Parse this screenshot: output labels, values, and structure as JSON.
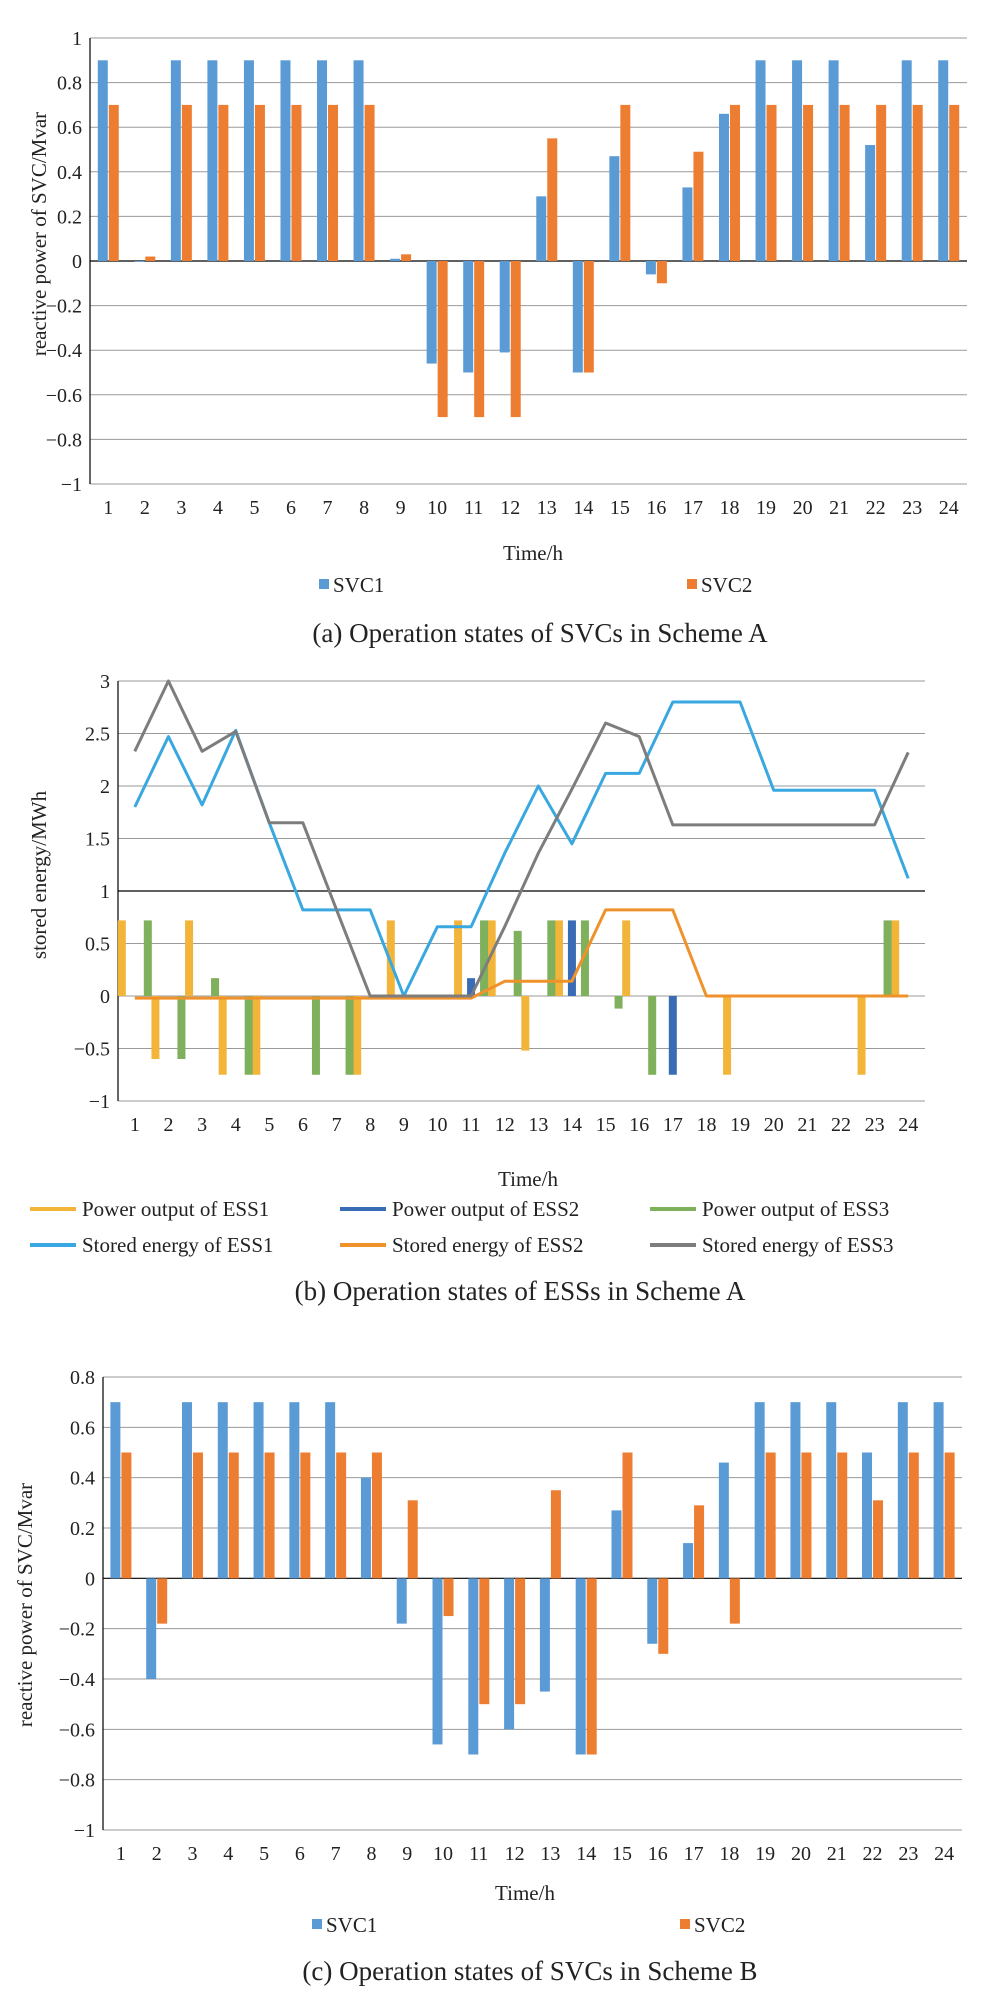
{
  "chart_data": [
    {
      "id": "a",
      "type": "bar",
      "caption": "(a) Operation states of SVCs in Scheme A",
      "xlabel": "Time/h",
      "ylabel": "reactive power of SVC/Mvar",
      "ylim": [
        -1,
        1
      ],
      "yticks": [
        1,
        0.8,
        0.6,
        0.4,
        0.2,
        0,
        -0.2,
        -0.4,
        -0.6,
        -0.8,
        -1
      ],
      "ytick_labels": [
        "1",
        "0.8",
        "0.6",
        "0.4",
        "0.2",
        "0",
        "−0.2",
        "−0.4",
        "−0.6",
        "−0.8",
        "−1"
      ],
      "categories": [
        "1",
        "2",
        "3",
        "4",
        "5",
        "6",
        "7",
        "8",
        "9",
        "10",
        "11",
        "12",
        "13",
        "14",
        "15",
        "16",
        "17",
        "18",
        "19",
        "20",
        "21",
        "22",
        "23",
        "24"
      ],
      "series": [
        {
          "name": "SVC1",
          "color": "#5b9bd5",
          "values": [
            0.9,
            0.0,
            0.9,
            0.9,
            0.9,
            0.9,
            0.9,
            0.9,
            0.01,
            -0.46,
            -0.5,
            -0.41,
            0.29,
            -0.5,
            0.47,
            -0.06,
            0.33,
            0.66,
            0.9,
            0.9,
            0.9,
            0.52,
            0.9,
            0.9
          ]
        },
        {
          "name": "SVC2",
          "color": "#ed7d31",
          "values": [
            0.7,
            0.02,
            0.7,
            0.7,
            0.7,
            0.7,
            0.7,
            0.7,
            0.03,
            -0.7,
            -0.7,
            -0.7,
            0.55,
            -0.5,
            0.7,
            -0.1,
            0.49,
            0.7,
            0.7,
            0.7,
            0.7,
            0.7,
            0.7,
            0.7
          ]
        }
      ],
      "legend": [
        "SVC1",
        "SVC2"
      ]
    },
    {
      "id": "b",
      "type": "bar+line",
      "caption": "(b) Operation states of ESSs in Scheme A",
      "xlabel": "Time/h",
      "ylabel": "stored energy/MWh",
      "ylim": [
        -1,
        3
      ],
      "yticks": [
        3,
        2.5,
        2,
        1.5,
        1,
        0.5,
        0,
        -0.5,
        -1
      ],
      "ytick_labels": [
        "3",
        "2.5",
        "2",
        "1.5",
        "1",
        "0.5",
        "0",
        "−0.5",
        "−1"
      ],
      "categories": [
        "1",
        "2",
        "3",
        "4",
        "5",
        "6",
        "7",
        "8",
        "9",
        "10",
        "11",
        "12",
        "13",
        "14",
        "15",
        "16",
        "17",
        "18",
        "19",
        "20",
        "21",
        "22",
        "23",
        "24"
      ],
      "bar_series": [
        {
          "name": "Power output of ESS1",
          "color": "#f2b53a",
          "values": [
            0.72,
            -0.6,
            0.72,
            -0.75,
            -0.75,
            0,
            0,
            -0.75,
            0.72,
            0,
            0.72,
            0.72,
            -0.52,
            0.72,
            0,
            0.72,
            0,
            0,
            -0.75,
            0,
            0,
            0,
            -0.75,
            0.72
          ]
        },
        {
          "name": "Power output of ESS2",
          "color": "#3a6cb5",
          "values": [
            0,
            0,
            0,
            0,
            0,
            0,
            0,
            0,
            0,
            0,
            0.17,
            0,
            0,
            0.72,
            0,
            0,
            -0.75,
            0,
            0,
            0,
            0,
            0,
            0,
            0
          ]
        },
        {
          "name": "Power output of ESS3",
          "color": "#7fb05c",
          "values": [
            0.72,
            -0.6,
            0.17,
            -0.75,
            0,
            -0.75,
            -0.75,
            0,
            0,
            0,
            0.72,
            0.62,
            0.72,
            0.72,
            -0.12,
            -0.75,
            0,
            0,
            0,
            0,
            0,
            0,
            0.72,
            0
          ]
        }
      ],
      "line_series": [
        {
          "name": "Stored energy of ESS1",
          "color": "#3aa8e0",
          "values": [
            1.8,
            2.47,
            1.82,
            2.53,
            1.65,
            0.82,
            0.82,
            0.82,
            0.0,
            0.66,
            0.66,
            1.36,
            2.0,
            1.45,
            2.12,
            2.12,
            2.8,
            2.8,
            2.8,
            1.96,
            1.96,
            1.96,
            1.96,
            1.12
          ]
        },
        {
          "name": "Stored energy of ESS2",
          "color": "#f0922c",
          "values": [
            -0.02,
            -0.02,
            -0.02,
            -0.02,
            -0.02,
            -0.02,
            -0.02,
            -0.02,
            -0.02,
            -0.02,
            -0.02,
            0.14,
            0.14,
            0.14,
            0.82,
            0.82,
            0.82,
            0.0,
            0.0,
            0.0,
            0.0,
            0.0,
            0.0,
            0.0
          ]
        },
        {
          "name": "Stored energy of ESS3",
          "color": "#7d7d7d",
          "values": [
            2.33,
            3.0,
            2.33,
            2.52,
            1.65,
            1.65,
            0.82,
            0.0,
            0.0,
            0.0,
            0.0,
            0.66,
            1.36,
            1.97,
            2.6,
            2.47,
            1.63,
            1.63,
            1.63,
            1.63,
            1.63,
            1.63,
            1.63,
            2.32
          ]
        }
      ],
      "legend": [
        "Power output of ESS1",
        "Power output of ESS2",
        "Power output of ESS3",
        "Stored energy of ESS1",
        "Stored energy of ESS2",
        "Stored energy of ESS3"
      ]
    },
    {
      "id": "c",
      "type": "bar",
      "caption": "(c) Operation states of SVCs in Scheme B",
      "xlabel": "Time/h",
      "ylabel": "reactive power of SVC/Mvar",
      "ylim": [
        -1,
        0.8
      ],
      "yticks": [
        0.8,
        0.6,
        0.4,
        0.2,
        0,
        -0.2,
        -0.4,
        -0.6,
        -0.8,
        -1
      ],
      "ytick_labels": [
        "0.8",
        "0.6",
        "0.4",
        "0.2",
        "0",
        "−0.2",
        "−0.4",
        "−0.6",
        "−0.8",
        "−1"
      ],
      "categories": [
        "1",
        "2",
        "3",
        "4",
        "5",
        "6",
        "7",
        "8",
        "9",
        "10",
        "11",
        "12",
        "13",
        "14",
        "15",
        "16",
        "17",
        "18",
        "19",
        "20",
        "21",
        "22",
        "23",
        "24"
      ],
      "series": [
        {
          "name": "SVC1",
          "color": "#5b9bd5",
          "values": [
            0.7,
            -0.4,
            0.7,
            0.7,
            0.7,
            0.7,
            0.7,
            0.4,
            -0.18,
            -0.66,
            -0.7,
            -0.6,
            -0.45,
            -0.7,
            0.27,
            -0.26,
            0.14,
            0.46,
            0.7,
            0.7,
            0.7,
            0.5,
            0.7,
            0.7
          ]
        },
        {
          "name": "SVC2",
          "color": "#ed7d31",
          "values": [
            0.5,
            -0.18,
            0.5,
            0.5,
            0.5,
            0.5,
            0.5,
            0.5,
            0.31,
            -0.15,
            -0.5,
            -0.5,
            0.35,
            -0.7,
            0.5,
            -0.3,
            0.29,
            -0.18,
            0.5,
            0.5,
            0.5,
            0.31,
            0.5,
            0.5
          ]
        }
      ],
      "legend": [
        "SVC1",
        "SVC2"
      ]
    }
  ]
}
